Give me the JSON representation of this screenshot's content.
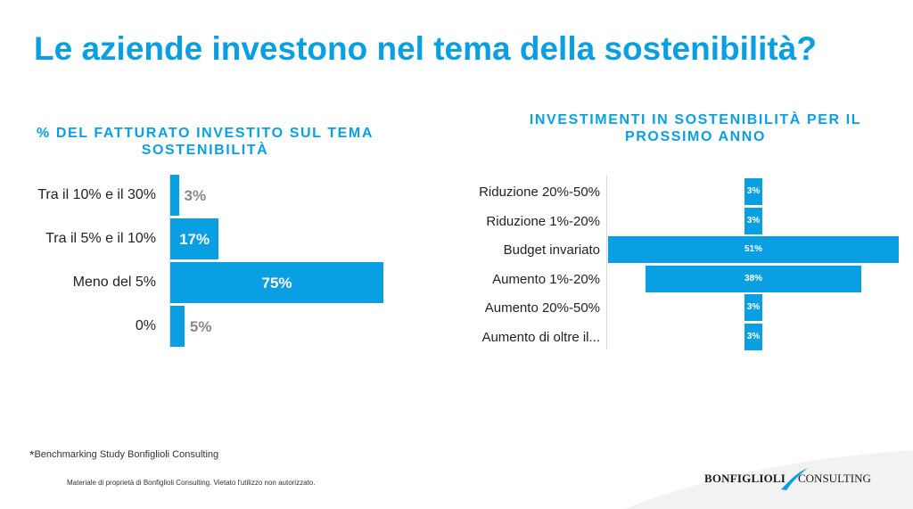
{
  "title": "Le aziende investono nel tema della sostenibilità?",
  "chart_data": [
    {
      "type": "bar",
      "orientation": "horizontal",
      "title": "% DEL FATTURATO INVESTITO SUL TEMA SOSTENIBILITÀ",
      "categories": [
        "Tra il 10% e il 30%",
        "Tra il 5% e il 10%",
        "Meno del 5%",
        "0%"
      ],
      "values": [
        3,
        17,
        75,
        5
      ],
      "labels": [
        "3%",
        "17%",
        "75%",
        "5%"
      ],
      "xlim": [
        0,
        75
      ],
      "grid": false,
      "bar_color": "#0a9fe3"
    },
    {
      "type": "bar",
      "orientation": "horizontal",
      "style": "centered",
      "title": "INVESTIMENTI IN SOSTENIBILITÀ PER IL PROSSIMO ANNO",
      "categories": [
        "Riduzione 20%-50%",
        "Riduzione 1%-20%",
        "Budget invariato",
        "Aumento 1%-20%",
        "Aumento 20%-50%",
        "Aumento di oltre il..."
      ],
      "values": [
        3,
        3,
        51,
        38,
        3,
        3
      ],
      "labels": [
        "3%",
        "3%",
        "51%",
        "38%",
        "3%",
        "3%"
      ],
      "xlim": [
        0,
        51
      ],
      "grid": false,
      "bar_color": "#0a9fe3"
    }
  ],
  "footnote": {
    "mark": "*",
    "text": "Benchmarking Study Bonfiglioli Consulting"
  },
  "copyright": "Materiale di proprietà di Bonfiglioli Consulting. Vietato l'utilizzo non autorizzato.",
  "logo": {
    "brand": "BONFIGLIOLI",
    "sub": "CONSULTING",
    "accent_color": "#0a9fe3"
  },
  "colors": {
    "title": "#0a9fe3",
    "bar": "#0a9fe3",
    "label_dark_value": "#888888"
  }
}
